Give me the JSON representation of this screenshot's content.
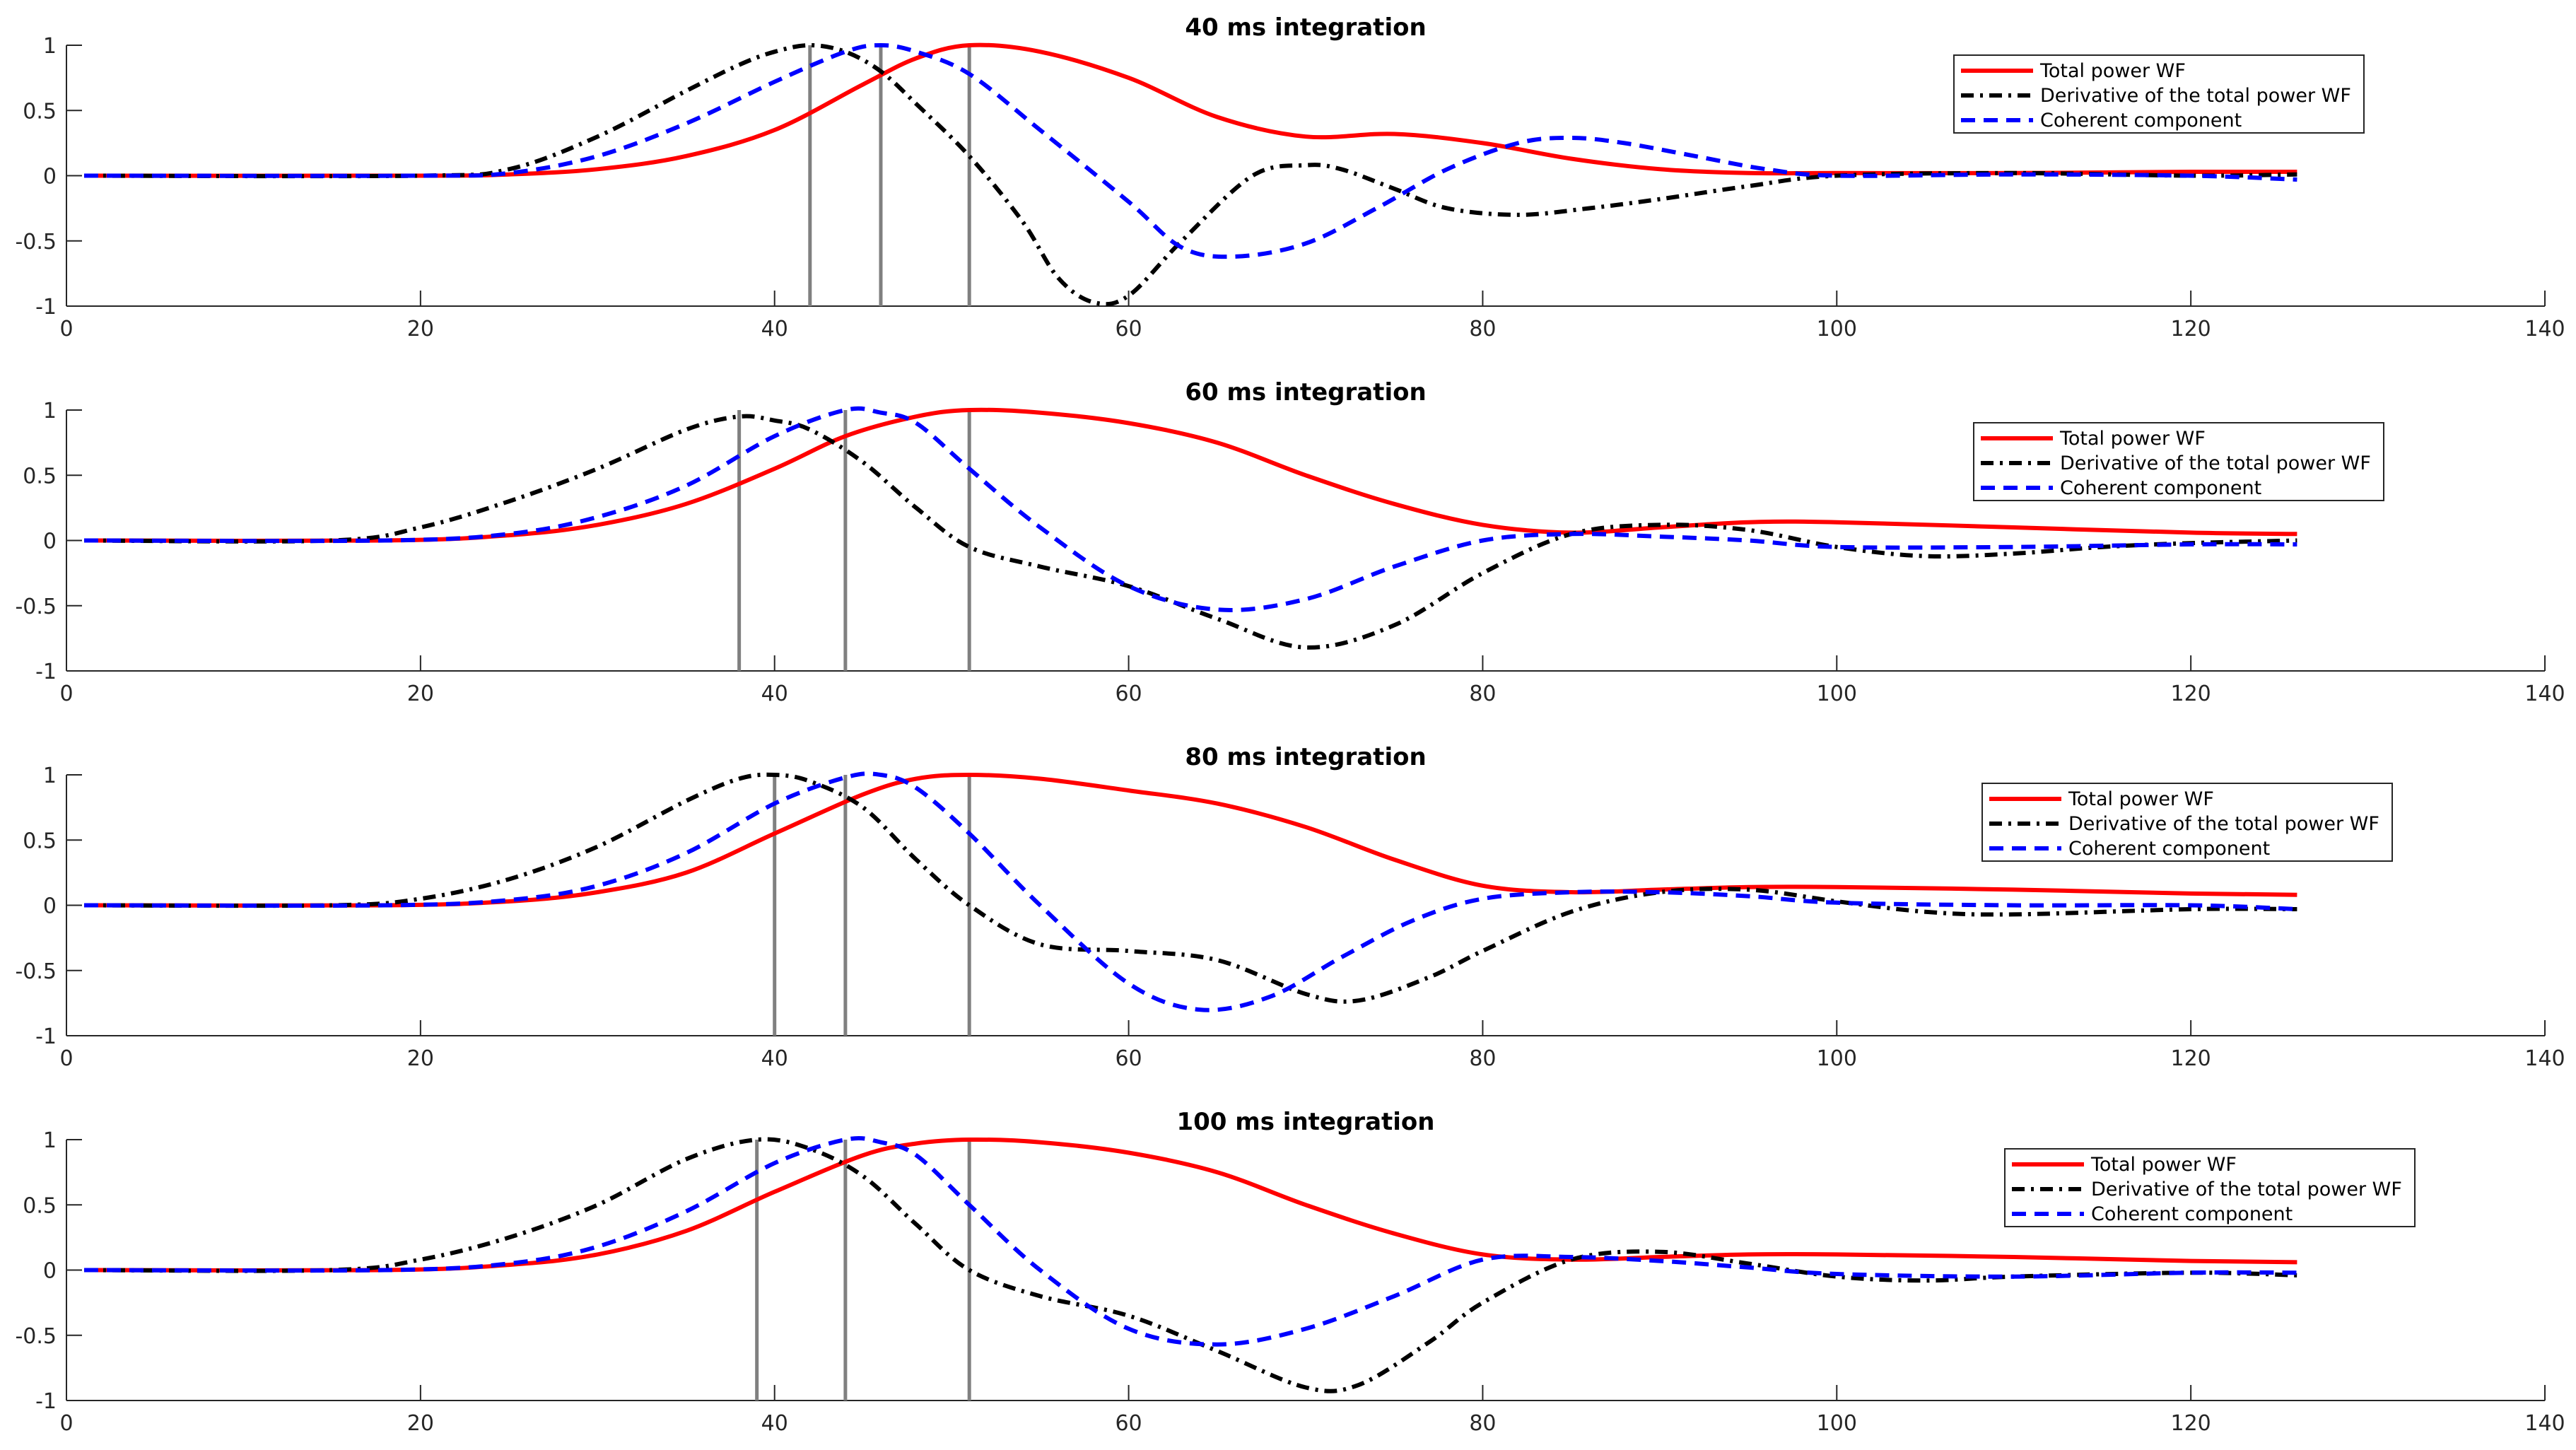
{
  "colors": {
    "total_power": "#ff0000",
    "derivative": "#000000",
    "coherent": "#0000ff",
    "marker": "#808080",
    "axis": "#262626"
  },
  "chart_data": [
    {
      "type": "line",
      "title": "40 ms integration",
      "xlim": [
        0,
        140
      ],
      "ylim": [
        -1,
        1
      ],
      "xticks": [
        0,
        20,
        40,
        60,
        80,
        100,
        120,
        140
      ],
      "yticks": [
        -1,
        -0.5,
        0,
        0.5,
        1
      ],
      "xtick_labels": [
        "0",
        "20",
        "40",
        "60",
        "80",
        "100",
        "120",
        "140"
      ],
      "ytick_labels": [
        "-1",
        "-0.5",
        "0",
        "0.5",
        "1"
      ],
      "legend": [
        "Total power WF",
        "Derivative of the total power WF",
        "Coherent component"
      ],
      "legend_position": "top-right",
      "vlines": [
        42,
        46,
        51
      ],
      "series": [
        {
          "name": "Total power WF",
          "style": "solid",
          "x": [
            1,
            20,
            25,
            30,
            35,
            40,
            45,
            48,
            51,
            55,
            60,
            65,
            70,
            75,
            80,
            85,
            90,
            95,
            100,
            110,
            120,
            126
          ],
          "y": [
            0,
            0,
            0.01,
            0.05,
            0.15,
            0.35,
            0.7,
            0.9,
            1,
            0.95,
            0.75,
            0.45,
            0.3,
            0.32,
            0.25,
            0.13,
            0.05,
            0.02,
            0.02,
            0.02,
            0.03,
            0.03
          ]
        },
        {
          "name": "Derivative of the total power WF",
          "style": "dashdot",
          "x": [
            1,
            20,
            25,
            30,
            35,
            38,
            40,
            42,
            44,
            46,
            48,
            51,
            54,
            56,
            58,
            60,
            63,
            67,
            70,
            72,
            75,
            78,
            82,
            86,
            90,
            95,
            100,
            110,
            120,
            126
          ],
          "y": [
            0,
            0,
            0.05,
            0.3,
            0.65,
            0.85,
            0.95,
            1,
            0.95,
            0.8,
            0.55,
            0.15,
            -0.35,
            -0.78,
            -0.97,
            -0.92,
            -0.5,
            0,
            0.08,
            0.05,
            -0.1,
            -0.25,
            -0.3,
            -0.25,
            -0.18,
            -0.08,
            0,
            0.02,
            0,
            0.01
          ]
        },
        {
          "name": "Coherent component",
          "style": "dashed",
          "x": [
            1,
            20,
            25,
            30,
            35,
            40,
            44,
            46,
            48,
            51,
            55,
            60,
            63,
            66,
            70,
            74,
            78,
            82,
            85,
            88,
            92,
            96,
            100,
            110,
            120,
            126
          ],
          "y": [
            0,
            0,
            0.02,
            0.15,
            0.4,
            0.72,
            0.95,
            1,
            0.95,
            0.78,
            0.35,
            -0.2,
            -0.55,
            -0.62,
            -0.52,
            -0.25,
            0.05,
            0.25,
            0.29,
            0.25,
            0.15,
            0.05,
            0,
            0.01,
            0,
            -0.03
          ]
        }
      ]
    },
    {
      "type": "line",
      "title": "60 ms integration",
      "xlim": [
        0,
        140
      ],
      "ylim": [
        -1,
        1
      ],
      "xticks": [
        0,
        20,
        40,
        60,
        80,
        100,
        120,
        140
      ],
      "yticks": [
        -1,
        -0.5,
        0,
        0.5,
        1
      ],
      "xtick_labels": [
        "0",
        "20",
        "40",
        "60",
        "80",
        "100",
        "120",
        "140"
      ],
      "ytick_labels": [
        "-1",
        "-0.5",
        "0",
        "0.5",
        "1"
      ],
      "legend": [
        "Total power WF",
        "Derivative of the total power WF",
        "Coherent component"
      ],
      "legend_position": "top-right",
      "vlines": [
        38,
        44,
        51
      ],
      "series": [
        {
          "name": "Total power WF",
          "style": "solid",
          "x": [
            1,
            18,
            25,
            30,
            35,
            40,
            44,
            48,
            51,
            55,
            60,
            65,
            70,
            75,
            80,
            85,
            90,
            95,
            100,
            110,
            120,
            126
          ],
          "y": [
            0,
            0,
            0.04,
            0.12,
            0.28,
            0.55,
            0.8,
            0.95,
            1,
            0.98,
            0.9,
            0.75,
            0.5,
            0.28,
            0.12,
            0.06,
            0.1,
            0.14,
            0.14,
            0.1,
            0.06,
            0.05
          ]
        },
        {
          "name": "Derivative of the total power WF",
          "style": "dashdot",
          "x": [
            1,
            15,
            20,
            25,
            30,
            35,
            38,
            40,
            42,
            45,
            48,
            51,
            55,
            60,
            65,
            70,
            75,
            80,
            85,
            90,
            95,
            100,
            105,
            110,
            115,
            120,
            126
          ],
          "y": [
            0,
            0,
            0.1,
            0.3,
            0.55,
            0.85,
            0.95,
            0.92,
            0.85,
            0.6,
            0.25,
            -0.05,
            -0.2,
            -0.35,
            -0.6,
            -0.82,
            -0.65,
            -0.25,
            0.05,
            0.12,
            0.08,
            -0.05,
            -0.12,
            -0.1,
            -0.05,
            -0.02,
            0
          ]
        },
        {
          "name": "Coherent component",
          "style": "dashed",
          "x": [
            1,
            18,
            25,
            30,
            35,
            40,
            44,
            46,
            48,
            51,
            55,
            60,
            65,
            70,
            75,
            80,
            85,
            90,
            95,
            100,
            110,
            120,
            126
          ],
          "y": [
            0,
            0,
            0.05,
            0.18,
            0.42,
            0.8,
            1,
            0.98,
            0.9,
            0.55,
            0.1,
            -0.35,
            -0.53,
            -0.45,
            -0.2,
            0,
            0.05,
            0.03,
            0,
            -0.05,
            -0.05,
            -0.03,
            -0.03
          ]
        }
      ]
    },
    {
      "type": "line",
      "title": "80 ms integration",
      "xlim": [
        0,
        140
      ],
      "ylim": [
        -1,
        1
      ],
      "xticks": [
        0,
        20,
        40,
        60,
        80,
        100,
        120,
        140
      ],
      "yticks": [
        -1,
        -0.5,
        0,
        0.5,
        1
      ],
      "xtick_labels": [
        "0",
        "20",
        "40",
        "60",
        "80",
        "100",
        "120",
        "140"
      ],
      "ytick_labels": [
        "-1",
        "-0.5",
        "0",
        "0.5",
        "1"
      ],
      "legend": [
        "Total power WF",
        "Derivative of the total power WF",
        "Coherent component"
      ],
      "legend_position": "top-right",
      "vlines": [
        40,
        44,
        51
      ],
      "series": [
        {
          "name": "Total power WF",
          "style": "solid",
          "x": [
            1,
            18,
            25,
            30,
            35,
            40,
            45,
            48,
            51,
            55,
            60,
            65,
            70,
            75,
            80,
            85,
            90,
            95,
            100,
            110,
            120,
            126
          ],
          "y": [
            0,
            0,
            0.03,
            0.1,
            0.25,
            0.55,
            0.85,
            0.97,
            1,
            0.97,
            0.88,
            0.78,
            0.6,
            0.35,
            0.15,
            0.1,
            0.12,
            0.14,
            0.14,
            0.12,
            0.09,
            0.08
          ]
        },
        {
          "name": "Derivative of the total power WF",
          "style": "dashdot",
          "x": [
            1,
            15,
            20,
            25,
            30,
            35,
            38,
            40,
            42,
            45,
            48,
            51,
            55,
            60,
            65,
            70,
            73,
            77,
            80,
            85,
            90,
            95,
            100,
            105,
            110,
            120,
            126
          ],
          "y": [
            0,
            0,
            0.05,
            0.2,
            0.45,
            0.8,
            0.97,
            1,
            0.95,
            0.75,
            0.35,
            0,
            -0.3,
            -0.35,
            -0.42,
            -0.68,
            -0.73,
            -0.55,
            -0.35,
            -0.05,
            0.1,
            0.12,
            0.03,
            -0.05,
            -0.07,
            -0.03,
            -0.03
          ]
        },
        {
          "name": "Coherent component",
          "style": "dashed",
          "x": [
            1,
            18,
            25,
            30,
            35,
            40,
            44,
            46,
            48,
            51,
            55,
            60,
            64,
            68,
            72,
            76,
            80,
            85,
            90,
            95,
            100,
            110,
            120,
            126
          ],
          "y": [
            0,
            0,
            0.04,
            0.15,
            0.4,
            0.78,
            0.98,
            1,
            0.9,
            0.55,
            0,
            -0.6,
            -0.8,
            -0.7,
            -0.4,
            -0.12,
            0.05,
            0.1,
            0.1,
            0.07,
            0.02,
            0,
            0,
            -0.03
          ]
        }
      ]
    },
    {
      "type": "line",
      "title": "100 ms integration",
      "xlim": [
        0,
        140
      ],
      "ylim": [
        -1,
        1
      ],
      "xticks": [
        0,
        20,
        40,
        60,
        80,
        100,
        120,
        140
      ],
      "yticks": [
        -1,
        -0.5,
        0,
        0.5,
        1
      ],
      "xtick_labels": [
        "0",
        "20",
        "40",
        "60",
        "80",
        "100",
        "120",
        "140"
      ],
      "ytick_labels": [
        "-1",
        "-0.5",
        "0",
        "0.5",
        "1"
      ],
      "legend": [
        "Total power WF",
        "Derivative of the total power WF",
        "Coherent component"
      ],
      "legend_position": "top-right",
      "vlines": [
        39,
        44,
        51
      ],
      "series": [
        {
          "name": "Total power WF",
          "style": "solid",
          "x": [
            1,
            18,
            25,
            30,
            35,
            40,
            45,
            48,
            51,
            55,
            60,
            65,
            70,
            75,
            80,
            85,
            90,
            95,
            100,
            110,
            120,
            126
          ],
          "y": [
            0,
            0,
            0.04,
            0.12,
            0.3,
            0.6,
            0.88,
            0.97,
            1,
            0.98,
            0.9,
            0.75,
            0.5,
            0.28,
            0.12,
            0.08,
            0.1,
            0.12,
            0.12,
            0.1,
            0.07,
            0.06
          ]
        },
        {
          "name": "Derivative of the total power WF",
          "style": "dashdot",
          "x": [
            1,
            15,
            20,
            25,
            30,
            35,
            39,
            42,
            45,
            48,
            51,
            55,
            60,
            65,
            70,
            73,
            77,
            80,
            85,
            90,
            95,
            100,
            105,
            110,
            120,
            126
          ],
          "y": [
            0,
            0,
            0.08,
            0.25,
            0.5,
            0.85,
            1,
            0.93,
            0.72,
            0.35,
            0,
            -0.2,
            -0.35,
            -0.62,
            -0.9,
            -0.88,
            -0.55,
            -0.25,
            0.08,
            0.14,
            0.05,
            -0.05,
            -0.08,
            -0.05,
            -0.02,
            -0.04
          ]
        },
        {
          "name": "Coherent component",
          "style": "dashed",
          "x": [
            1,
            18,
            25,
            30,
            35,
            40,
            44,
            46,
            48,
            51,
            55,
            60,
            65,
            70,
            75,
            80,
            85,
            90,
            95,
            100,
            110,
            120,
            126
          ],
          "y": [
            0,
            0,
            0.05,
            0.18,
            0.45,
            0.82,
            1,
            0.98,
            0.88,
            0.5,
            0,
            -0.45,
            -0.57,
            -0.45,
            -0.2,
            0.08,
            0.1,
            0.07,
            0.02,
            -0.03,
            -0.05,
            -0.02,
            -0.02
          ]
        }
      ]
    }
  ]
}
